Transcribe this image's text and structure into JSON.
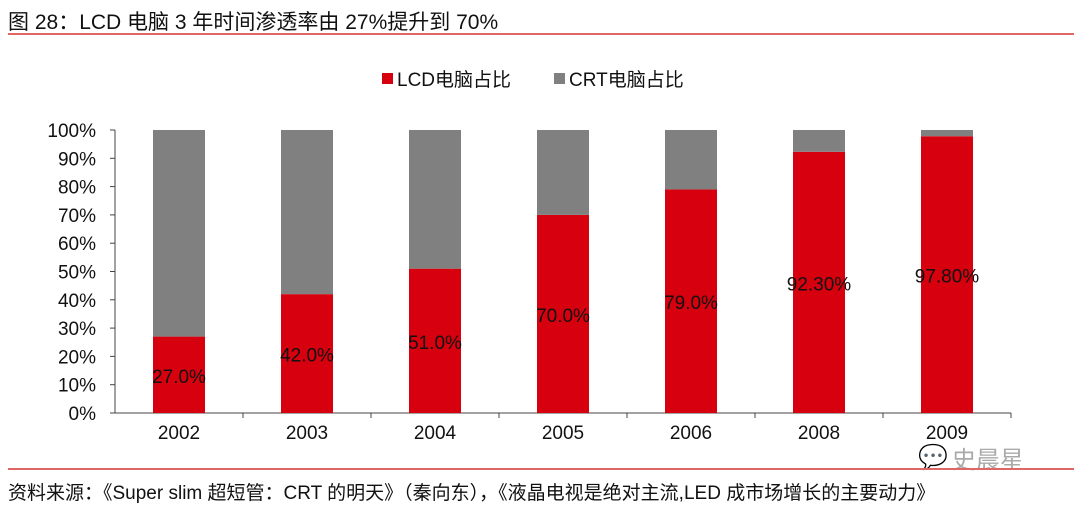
{
  "title": "图 28：LCD 电脑 3 年时间渗透率由 27%提升到 70%",
  "source": "资料来源：《Super slim 超短管：CRT 的明天》（秦向东），《液晶电视是绝对主流,LED 成市场增长的主要动力》",
  "watermark": "史晨星",
  "colors": {
    "lcd": "#d7000f",
    "crt": "#808080",
    "rule": "#e06666"
  },
  "chart_data": {
    "type": "bar",
    "stacked": true,
    "categories": [
      "2002",
      "2003",
      "2004",
      "2005",
      "2006",
      "2008",
      "2009"
    ],
    "series": [
      {
        "name": "LCD电脑占比",
        "values": [
          27.0,
          42.0,
          51.0,
          70.0,
          79.0,
          92.3,
          97.8
        ]
      },
      {
        "name": "CRT电脑占比",
        "values": [
          73.0,
          58.0,
          49.0,
          30.0,
          21.0,
          7.7,
          2.2
        ]
      }
    ],
    "data_labels": [
      "27.0%",
      "42.0%",
      "51.0%",
      "70.0%",
      "79.0%",
      "92.30%",
      "97.80%"
    ],
    "yticks": [
      "0%",
      "10%",
      "20%",
      "30%",
      "40%",
      "50%",
      "60%",
      "70%",
      "80%",
      "90%",
      "100%"
    ],
    "ylim": [
      0,
      100
    ],
    "legend": "top"
  }
}
